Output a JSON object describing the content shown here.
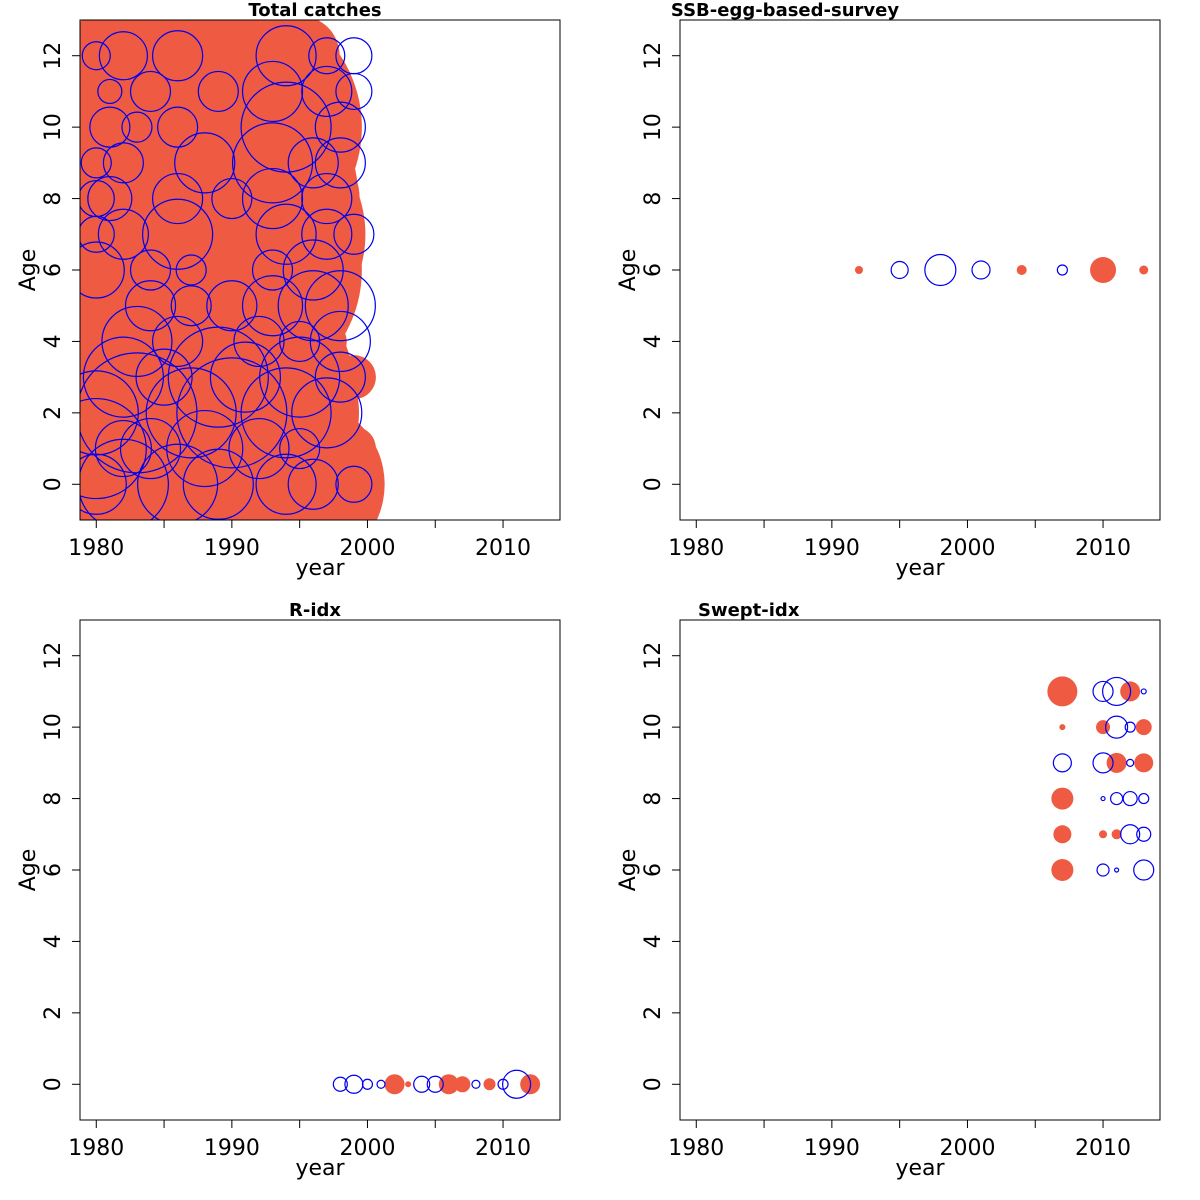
{
  "colors": {
    "positive": "#EE5A42",
    "negative": "#0000EE",
    "frame": "#000000"
  },
  "chart_data": [
    {
      "type": "scatter",
      "subtype": "bubble",
      "title": "Total catches",
      "xlabel": "year",
      "ylabel": "Age",
      "xlim": [
        1978.8,
        2014.2
      ],
      "ylim": [
        -1,
        13
      ],
      "xticks": [
        1980,
        1990,
        2000,
        2010
      ],
      "yticks": [
        0,
        2,
        4,
        6,
        8,
        10,
        12
      ],
      "legend": "none",
      "grid": false,
      "series": [
        {
          "sign": "positive",
          "points": [
            [
              1981,
              0,
              70
            ],
            [
              1984,
              0,
              95
            ],
            [
              1987,
              0,
              72
            ],
            [
              1992,
              0,
              110
            ],
            [
              1995,
              0,
              85
            ],
            [
              1997,
              1,
              25
            ],
            [
              1983,
              1,
              55
            ],
            [
              1991,
              1,
              80
            ],
            [
              1995,
              1,
              60
            ],
            [
              1999,
              1,
              22
            ],
            [
              1986,
              2,
              60
            ],
            [
              1992,
              2,
              100
            ],
            [
              1996,
              2,
              45
            ],
            [
              1980,
              3,
              45
            ],
            [
              1986,
              3,
              90
            ],
            [
              1993,
              3,
              80
            ],
            [
              1999,
              3,
              22
            ],
            [
              1980,
              4,
              70
            ],
            [
              1986,
              4,
              85
            ],
            [
              1993,
              4,
              70
            ],
            [
              1997,
              4,
              20
            ],
            [
              1981,
              5,
              60
            ],
            [
              1985,
              5,
              80
            ],
            [
              1991,
              5,
              75
            ],
            [
              1982,
              6,
              110
            ],
            [
              1990,
              6,
              130
            ],
            [
              1995,
              6,
              60
            ],
            [
              1998,
              6,
              20
            ],
            [
              1984,
              7,
              90
            ],
            [
              1991,
              7,
              120
            ],
            [
              1996,
              7,
              45
            ],
            [
              1982,
              8,
              100
            ],
            [
              1989,
              8,
              140
            ],
            [
              1995,
              8,
              60
            ],
            [
              1981,
              9,
              90
            ],
            [
              1988,
              9,
              130
            ],
            [
              1995,
              9,
              40
            ],
            [
              1982,
              10,
              100
            ],
            [
              1990,
              10,
              130
            ],
            [
              1996,
              10,
              35
            ],
            [
              1983,
              11,
              90
            ],
            [
              1989,
              11,
              110
            ],
            [
              1995,
              11,
              40
            ],
            [
              1983,
              12,
              60
            ],
            [
              1990,
              12,
              90
            ],
            [
              1995,
              12,
              40
            ]
          ]
        },
        {
          "sign": "negative",
          "points": [
            [
              1980,
              0,
              30
            ],
            [
              1982,
              0,
              45
            ],
            [
              1986,
              0,
              40
            ],
            [
              1989,
              0,
              35
            ],
            [
              1994,
              0,
              30
            ],
            [
              1996,
              0,
              25
            ],
            [
              1999,
              0,
              18
            ],
            [
              1980,
              1,
              50
            ],
            [
              1982,
              1,
              28
            ],
            [
              1984,
              1,
              30
            ],
            [
              1988,
              1,
              38
            ],
            [
              1992,
              1,
              30
            ],
            [
              1995,
              1,
              20
            ],
            [
              1980,
              2,
              42
            ],
            [
              1983,
              2,
              60
            ],
            [
              1987,
              2,
              45
            ],
            [
              1990,
              2,
              55
            ],
            [
              1994,
              2,
              45
            ],
            [
              1997,
              2,
              35
            ],
            [
              1982,
              3,
              40
            ],
            [
              1985,
              3,
              28
            ],
            [
              1989,
              3,
              50
            ],
            [
              1991,
              3,
              35
            ],
            [
              1995,
              3,
              40
            ],
            [
              1998,
              3,
              25
            ],
            [
              1983,
              4,
              35
            ],
            [
              1986,
              4,
              25
            ],
            [
              1992,
              4,
              25
            ],
            [
              1995,
              4,
              20
            ],
            [
              1998,
              4,
              30
            ],
            [
              1984,
              5,
              25
            ],
            [
              1987,
              5,
              20
            ],
            [
              1990,
              5,
              25
            ],
            [
              1993,
              5,
              30
            ],
            [
              1996,
              5,
              35
            ],
            [
              1998,
              5,
              35
            ],
            [
              1980,
              6,
              28
            ],
            [
              1984,
              6,
              20
            ],
            [
              1987,
              6,
              15
            ],
            [
              1993,
              6,
              20
            ],
            [
              1996,
              6,
              30
            ],
            [
              1980,
              7,
              18
            ],
            [
              1982,
              7,
              25
            ],
            [
              1986,
              7,
              35
            ],
            [
              1994,
              7,
              30
            ],
            [
              1997,
              7,
              25
            ],
            [
              1999,
              7,
              20
            ],
            [
              1980,
              8,
              18
            ],
            [
              1981,
              8,
              22
            ],
            [
              1986,
              8,
              25
            ],
            [
              1990,
              8,
              20
            ],
            [
              1993,
              8,
              30
            ],
            [
              1997,
              8,
              25
            ],
            [
              1980,
              9,
              15
            ],
            [
              1982,
              9,
              20
            ],
            [
              1988,
              9,
              30
            ],
            [
              1993,
              9,
              40
            ],
            [
              1996,
              9,
              25
            ],
            [
              1998,
              9,
              25
            ],
            [
              1981,
              10,
              20
            ],
            [
              1983,
              10,
              15
            ],
            [
              1986,
              10,
              20
            ],
            [
              1994,
              10,
              45
            ],
            [
              1998,
              10,
              25
            ],
            [
              1981,
              11,
              12
            ],
            [
              1984,
              11,
              20
            ],
            [
              1989,
              11,
              20
            ],
            [
              1993,
              11,
              30
            ],
            [
              1997,
              11,
              25
            ],
            [
              1999,
              11,
              18
            ],
            [
              1980,
              12,
              14
            ],
            [
              1982,
              12,
              24
            ],
            [
              1986,
              12,
              25
            ],
            [
              1994,
              12,
              30
            ],
            [
              1997,
              12,
              18
            ],
            [
              1999,
              12,
              18
            ]
          ]
        }
      ]
    },
    {
      "type": "scatter",
      "subtype": "bubble",
      "title": "SSB-egg-based-survey",
      "xlabel": "year",
      "ylabel": "Age",
      "xlim": [
        1978.8,
        2014.2
      ],
      "ylim": [
        -1,
        13
      ],
      "xticks": [
        1980,
        1990,
        2000,
        2010
      ],
      "yticks": [
        0,
        2,
        4,
        6,
        8,
        10,
        12
      ],
      "legend": "none",
      "grid": false,
      "series": [
        {
          "sign": "positive",
          "points": [
            [
              1992,
              6,
              4
            ],
            [
              2004,
              6,
              5
            ],
            [
              2010,
              6,
              13
            ],
            [
              2013,
              6,
              4.5
            ]
          ]
        },
        {
          "sign": "negative",
          "points": [
            [
              1995,
              6,
              8.5
            ],
            [
              1998,
              6,
              15.5
            ],
            [
              2001,
              6,
              9
            ],
            [
              2007,
              6,
              5
            ]
          ]
        }
      ]
    },
    {
      "type": "scatter",
      "subtype": "bubble",
      "title": "R-idx",
      "xlabel": "year",
      "ylabel": "Age",
      "xlim": [
        1978.8,
        2014.2
      ],
      "ylim": [
        -1,
        13
      ],
      "xticks": [
        1980,
        1990,
        2000,
        2010
      ],
      "yticks": [
        0,
        2,
        4,
        6,
        8,
        10,
        12
      ],
      "legend": "none",
      "grid": false,
      "series": [
        {
          "sign": "positive",
          "points": [
            [
              2002,
              0,
              10
            ],
            [
              2003,
              0,
              3
            ],
            [
              2006,
              0,
              10
            ],
            [
              2007,
              0,
              8
            ],
            [
              2009,
              0,
              6
            ],
            [
              2012,
              0,
              10
            ]
          ]
        },
        {
          "sign": "negative",
          "points": [
            [
              1998,
              0,
              7
            ],
            [
              1999,
              0,
              9
            ],
            [
              2000,
              0,
              5
            ],
            [
              2001,
              0,
              4
            ],
            [
              2004,
              0,
              8
            ],
            [
              2005,
              0,
              8
            ],
            [
              2008,
              0,
              4
            ],
            [
              2010,
              0,
              5
            ],
            [
              2011,
              0,
              14
            ]
          ]
        }
      ]
    },
    {
      "type": "scatter",
      "subtype": "bubble",
      "title": "Swept-idx",
      "xlabel": "year",
      "ylabel": "Age",
      "xlim": [
        1978.8,
        2014.2
      ],
      "ylim": [
        -1,
        13
      ],
      "xticks": [
        1980,
        1990,
        2000,
        2010
      ],
      "yticks": [
        0,
        2,
        4,
        6,
        8,
        10,
        12
      ],
      "legend": "none",
      "grid": false,
      "series": [
        {
          "sign": "positive",
          "points": [
            [
              2007,
              6,
              11
            ],
            [
              2007,
              7,
              9
            ],
            [
              2007,
              8,
              11
            ],
            [
              2007,
              10,
              3
            ],
            [
              2007,
              11,
              15
            ],
            [
              2010,
              7,
              4
            ],
            [
              2010,
              10,
              7
            ],
            [
              2011,
              7,
              5
            ],
            [
              2011,
              9,
              10
            ],
            [
              2012,
              11,
              10
            ],
            [
              2013,
              9,
              9.5
            ],
            [
              2013,
              10,
              8
            ]
          ]
        },
        {
          "sign": "negative",
          "points": [
            [
              2007,
              9,
              9
            ],
            [
              2010,
              6,
              6
            ],
            [
              2010,
              8,
              2
            ],
            [
              2010,
              9,
              10
            ],
            [
              2010,
              11,
              10
            ],
            [
              2011,
              6,
              2
            ],
            [
              2011,
              8,
              6
            ],
            [
              2011,
              10,
              11
            ],
            [
              2011,
              11,
              14
            ],
            [
              2012,
              7,
              9.5
            ],
            [
              2012,
              8,
              7
            ],
            [
              2012,
              9,
              3.5
            ],
            [
              2012,
              10,
              5
            ],
            [
              2013,
              6,
              10
            ],
            [
              2013,
              7,
              7
            ],
            [
              2013,
              8,
              5
            ],
            [
              2013,
              11,
              2.5
            ]
          ]
        }
      ]
    }
  ]
}
